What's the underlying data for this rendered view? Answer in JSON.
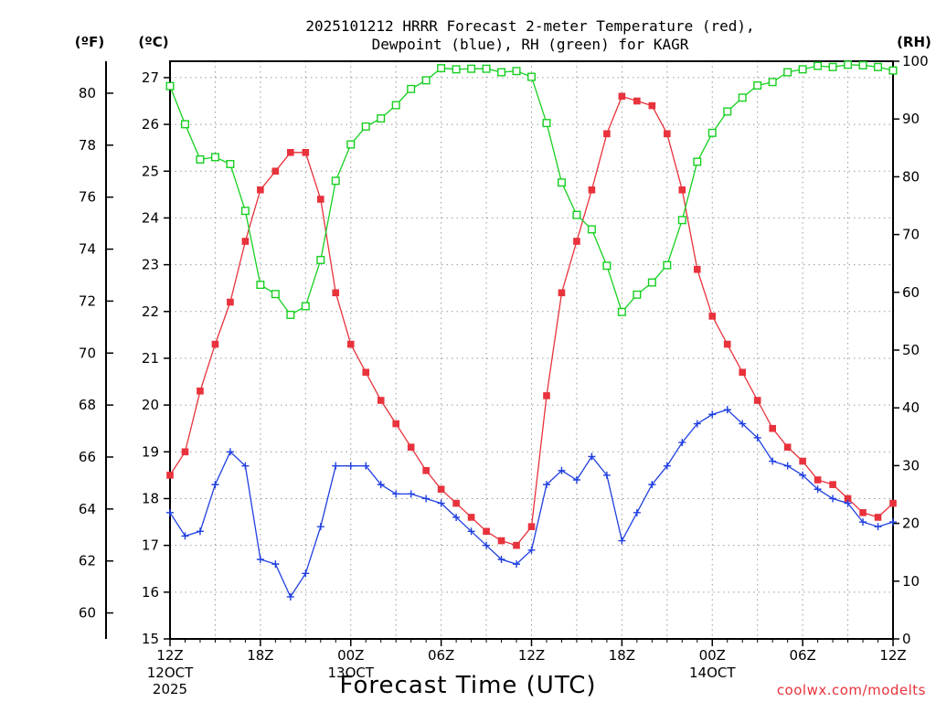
{
  "chart_data": {
    "type": "line",
    "title_lines": [
      "2025101212 HRRR Forecast 2-meter Temperature (red),",
      "Dewpoint (blue), RH (green) for KAGR"
    ],
    "xlabel": "Forecast Time (UTC)",
    "credit": "coolwx.com/modelts",
    "units": {
      "fahrenheit": "(ºF)",
      "celsius": "(ºC)",
      "rh": "(RH)"
    },
    "x_hours": [
      0,
      1,
      2,
      3,
      4,
      5,
      6,
      7,
      8,
      9,
      10,
      11,
      12,
      13,
      14,
      15,
      16,
      17,
      18,
      19,
      20,
      21,
      22,
      23,
      24,
      25,
      26,
      27,
      28,
      29,
      30,
      31,
      32,
      33,
      34,
      35,
      36,
      37,
      38,
      39,
      40,
      41,
      42,
      43,
      44,
      45,
      46,
      47,
      48
    ],
    "xlim": [
      0,
      48
    ],
    "x_ticks": [
      {
        "hour": 0,
        "label": "12Z",
        "sub": [
          "12OCT",
          "2025"
        ]
      },
      {
        "hour": 6,
        "label": "18Z",
        "sub": []
      },
      {
        "hour": 12,
        "label": "00Z",
        "sub": [
          "13OCT"
        ]
      },
      {
        "hour": 18,
        "label": "06Z",
        "sub": []
      },
      {
        "hour": 24,
        "label": "12Z",
        "sub": []
      },
      {
        "hour": 30,
        "label": "18Z",
        "sub": []
      },
      {
        "hour": 36,
        "label": "00Z",
        "sub": [
          "14OCT"
        ]
      },
      {
        "hour": 42,
        "label": "06Z",
        "sub": []
      },
      {
        "hour": 48,
        "label": "12Z",
        "sub": []
      }
    ],
    "celsius_ticks": [
      "15",
      "16",
      "17",
      "18",
      "19",
      "20",
      "21",
      "22",
      "23",
      "24",
      "25",
      "26",
      "27"
    ],
    "fahrenheit_ticks": [
      "60",
      "62",
      "64",
      "66",
      "68",
      "70",
      "72",
      "74",
      "76",
      "78",
      "80"
    ],
    "rh_ticks": [
      "0",
      "10",
      "20",
      "30",
      "40",
      "50",
      "60",
      "70",
      "80",
      "90",
      "100"
    ],
    "ylim_celsius": [
      15,
      27.35
    ],
    "ylim_rh": [
      0,
      100
    ],
    "grid": true,
    "series": [
      {
        "name": "Temperature",
        "axis": "celsius",
        "marker": "filled-square",
        "color": "#e8323c",
        "values": [
          18.5,
          19.0,
          20.3,
          21.3,
          22.2,
          23.5,
          24.6,
          25.0,
          25.4,
          25.4,
          24.4,
          22.4,
          21.3,
          20.7,
          20.1,
          19.6,
          19.1,
          18.6,
          18.2,
          17.9,
          17.6,
          17.3,
          17.1,
          17.0,
          17.4,
          20.2,
          22.4,
          23.5,
          24.6,
          25.8,
          26.6,
          26.5,
          26.4,
          25.8,
          24.6,
          22.9,
          21.9,
          21.3,
          20.7,
          20.1,
          19.5,
          19.1,
          18.8,
          18.4,
          18.3,
          18.0,
          17.7,
          17.6,
          17.9
        ]
      },
      {
        "name": "Dewpoint",
        "axis": "celsius",
        "marker": "plus",
        "color": "#1f3fe0",
        "values": [
          17.7,
          17.2,
          17.3,
          18.3,
          19.0,
          18.7,
          16.7,
          16.6,
          15.9,
          16.4,
          17.4,
          18.7,
          18.7,
          18.7,
          18.3,
          18.1,
          18.1,
          18.0,
          17.9,
          17.6,
          17.3,
          17.0,
          16.7,
          16.6,
          16.9,
          18.3,
          18.6,
          18.4,
          18.9,
          18.5,
          17.1,
          17.7,
          18.3,
          18.7,
          19.2,
          19.6,
          19.8,
          19.9,
          19.6,
          19.3,
          18.8,
          18.7,
          18.5,
          18.2,
          18.0,
          17.9,
          17.5,
          17.4,
          17.5
        ]
      },
      {
        "name": "RH",
        "axis": "rh",
        "marker": "open-square",
        "color": "#16d020",
        "values": [
          95.7,
          89.1,
          83.0,
          83.4,
          82.2,
          74.1,
          61.3,
          59.7,
          56.1,
          57.6,
          65.6,
          79.3,
          85.6,
          88.7,
          90.1,
          92.4,
          95.2,
          96.7,
          98.8,
          98.6,
          98.7,
          98.7,
          98.1,
          98.3,
          97.3,
          89.3,
          79.0,
          73.4,
          70.9,
          64.6,
          56.6,
          59.6,
          61.7,
          64.7,
          72.5,
          82.6,
          87.6,
          91.3,
          93.7,
          95.8,
          96.4,
          98.1,
          98.6,
          99.2,
          99.0,
          99.4,
          99.3,
          99.0,
          98.4
        ]
      }
    ]
  }
}
